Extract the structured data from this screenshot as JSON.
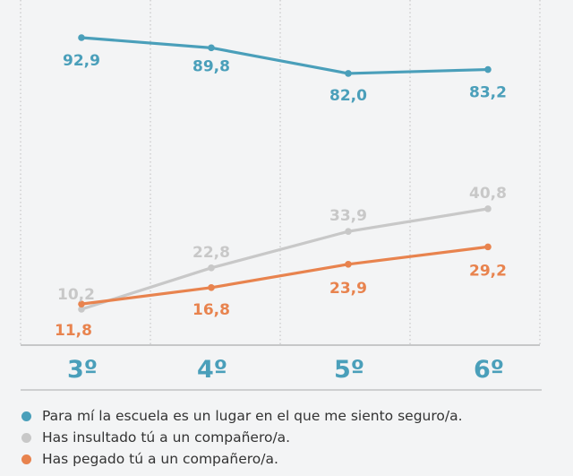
{
  "chart_data": {
    "type": "line",
    "categories": [
      "3º",
      "4º",
      "5º",
      "6º"
    ],
    "series": [
      {
        "name": "Para mí la escuela es un lugar en el que me siento seguro/a.",
        "color": "#4a9fba",
        "values": [
          92.9,
          89.8,
          82.0,
          83.2
        ],
        "labels": [
          "92,9",
          "89,8",
          "82,0",
          "83,2"
        ]
      },
      {
        "name": "Has insultado tú a un compañero/a.",
        "color": "#c8c8c8",
        "values": [
          10.2,
          22.8,
          33.9,
          40.8
        ],
        "labels": [
          "10,2",
          "22,8",
          "33,9",
          "40,8"
        ]
      },
      {
        "name": "Has pegado tú a un compañero/a.",
        "color": "#e8834e",
        "values": [
          11.8,
          16.8,
          23.9,
          29.2
        ],
        "labels": [
          "11,8",
          "16,8",
          "23,9",
          "29,2"
        ]
      }
    ],
    "ylim": [
      0,
      100
    ],
    "grid": "vertical dotted"
  },
  "colors": {
    "background": "#f3f4f5",
    "axis": "#9a9a9a",
    "grid": "#bdbdbd",
    "category_label": "#4a9fba"
  }
}
